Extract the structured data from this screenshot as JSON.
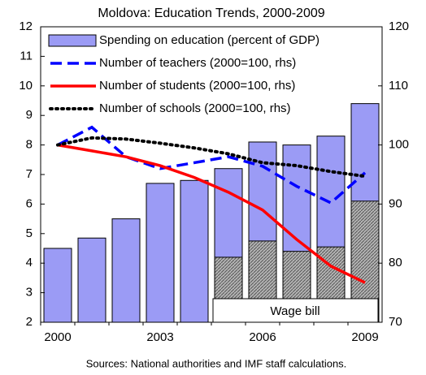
{
  "chart_data": {
    "type": "bar",
    "title": "Moldova: Education Trends, 2000-2009",
    "categories": [
      "2000",
      null,
      null,
      "2003",
      null,
      null,
      "2006",
      null,
      null,
      "2009"
    ],
    "series": [
      {
        "name": "Spending on education (percent of GDP)",
        "type": "bar",
        "color": "#9b9bf5",
        "values": [
          4.5,
          4.85,
          5.5,
          6.7,
          6.8,
          7.2,
          8.1,
          8.0,
          8.3,
          9.4
        ]
      },
      {
        "name": "Wage bill",
        "type": "bar",
        "color": "#a8a8a8",
        "values": [
          null,
          null,
          null,
          null,
          null,
          4.2,
          4.75,
          4.4,
          4.55,
          6.1
        ]
      },
      {
        "name": "Number of teachers (2000=100, rhs)",
        "type": "line",
        "axis": "y2",
        "color": "#0000ff",
        "dash": "dashed",
        "values": [
          100,
          103,
          98,
          96,
          97,
          98,
          96.4,
          93,
          90.2,
          95.3
        ]
      },
      {
        "name": "Number of students (2000=100, rhs)",
        "type": "line",
        "axis": "y2",
        "color": "#ff0000",
        "dash": "solid",
        "values": [
          100,
          99,
          98,
          96.5,
          94.5,
          92,
          89,
          84,
          79.5,
          76.7
        ]
      },
      {
        "name": "Number of schools (2000=100, rhs)",
        "type": "line",
        "axis": "y2",
        "color": "#000000",
        "dash": "dotted",
        "values": [
          100,
          101.2,
          101,
          100.3,
          99.5,
          98.5,
          97,
          96.5,
          95.5,
          94.7
        ]
      }
    ],
    "ylim": [
      2,
      12
    ],
    "yticks": [
      2,
      3,
      4,
      5,
      6,
      7,
      8,
      9,
      10,
      11,
      12
    ],
    "y2lim": [
      70,
      120
    ],
    "y2ticks": [
      70,
      80,
      90,
      100,
      110,
      120
    ],
    "note": "Sources: National authorities and IMF staff calculations."
  }
}
